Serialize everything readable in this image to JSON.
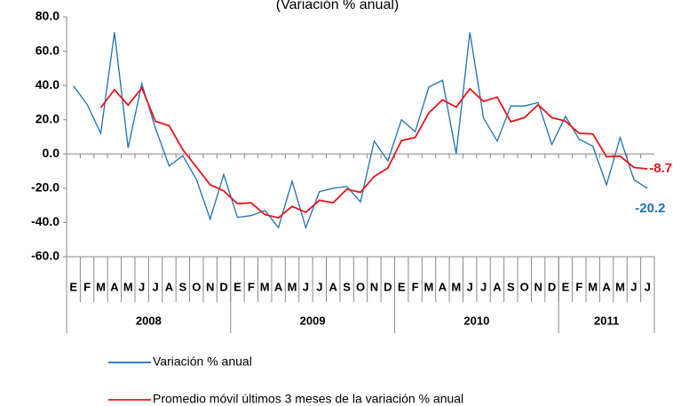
{
  "chart_data": {
    "type": "line",
    "subtitle": "(Variación % anual)",
    "categories": [
      "E",
      "F",
      "M",
      "A",
      "M",
      "J",
      "J",
      "A",
      "S",
      "O",
      "N",
      "D",
      "E",
      "F",
      "M",
      "A",
      "M",
      "J",
      "J",
      "A",
      "S",
      "O",
      "N",
      "D",
      "E",
      "F",
      "M",
      "A",
      "M",
      "J",
      "J",
      "A",
      "S",
      "O",
      "N",
      "D",
      "E",
      "F",
      "M",
      "A",
      "M",
      "J",
      "J"
    ],
    "year_groups": [
      "2008",
      "2009",
      "2010",
      "2011"
    ],
    "series": [
      {
        "name": "Variación % anual",
        "color": "#1f6fb2",
        "values": [
          39.7,
          29,
          12,
          71,
          3.5,
          41,
          15,
          -7,
          -1,
          -15,
          -38,
          -12,
          -37,
          -36,
          -33,
          -43,
          -16,
          -43,
          -22,
          -20,
          -19,
          -28,
          7.5,
          -4,
          20,
          13,
          39,
          43,
          0,
          71,
          21,
          7.5,
          28,
          28,
          30,
          5.5,
          22,
          8.6,
          4.5,
          -18,
          9.6,
          -15,
          -20.2
        ]
      },
      {
        "name": "Promedio móvil últimos 3 meses de la variación % anual",
        "color": "#e8141c",
        "values": [
          null,
          null,
          27,
          37.5,
          28.5,
          38.5,
          19,
          16.5,
          2.5,
          -7.7,
          -18,
          -21.6,
          -29,
          -28.5,
          -35.3,
          -37.3,
          -30.6,
          -34,
          -27,
          -28.5,
          -20.6,
          -22.4,
          -13.2,
          -8.2,
          7.8,
          9.6,
          24,
          31.6,
          27.3,
          38,
          30.7,
          33.2,
          18.8,
          21.2,
          28.7,
          21.2,
          19.2,
          12,
          11.7,
          -1.6,
          -1.3,
          -7.9,
          -8.7
        ]
      }
    ],
    "ylim": [
      -60,
      80
    ],
    "yticks": [
      {
        "value": 80,
        "label": "80.0"
      },
      {
        "value": 60,
        "label": "60.0"
      },
      {
        "value": 40,
        "label": "40.0"
      },
      {
        "value": 20,
        "label": "20.0"
      },
      {
        "value": 0,
        "label": "0.0"
      },
      {
        "value": -20,
        "label": "-20.0"
      },
      {
        "value": -40,
        "label": "-40.0"
      },
      {
        "value": -60,
        "label": "-60.0"
      }
    ]
  }
}
